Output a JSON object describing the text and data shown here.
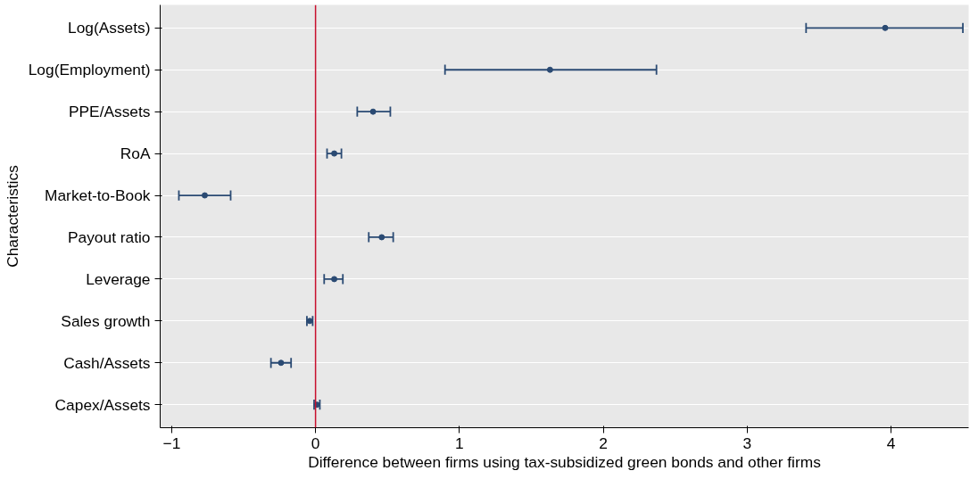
{
  "chart_data": {
    "type": "scatter",
    "orientation": "horizontal",
    "xlabel": "Difference between firms using tax-subsidized green bonds and other firms",
    "ylabel": "Characteristics",
    "categories": [
      "Log(Assets)",
      "Log(Employment)",
      "PPE/Assets",
      "RoA",
      "Market-to-Book",
      "Payout ratio",
      "Leverage",
      "Sales growth",
      "Cash/Assets",
      "Capex/Assets"
    ],
    "series": [
      {
        "color": "#2a4a73",
        "values": [
          3.96,
          1.63,
          0.4,
          0.13,
          -0.77,
          0.46,
          0.13,
          -0.04,
          -0.24,
          0.01
        ],
        "errors": [
          [
            3.41,
            4.5
          ],
          [
            0.9,
            2.37
          ],
          [
            0.29,
            0.52
          ],
          [
            0.08,
            0.18
          ],
          [
            -0.95,
            -0.59
          ],
          [
            0.37,
            0.54
          ],
          [
            0.06,
            0.19
          ],
          [
            -0.06,
            -0.02
          ],
          [
            -0.31,
            -0.17
          ],
          [
            -0.01,
            0.03
          ]
        ]
      }
    ],
    "xlim": [
      -1.08,
      4.54
    ],
    "xticks": [
      -1,
      0,
      1,
      2,
      3,
      4
    ],
    "ref_lines": [
      {
        "axis": "x",
        "value": 0,
        "color": "#c8102e"
      }
    ],
    "grid": "y",
    "marker": "circle"
  }
}
